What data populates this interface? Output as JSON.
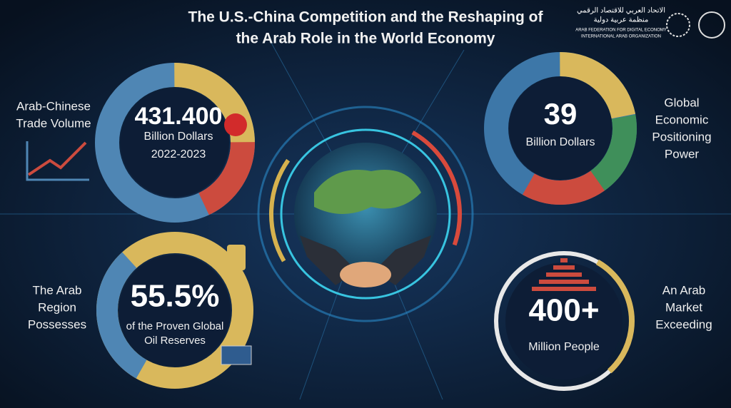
{
  "header": {
    "title_lines": [
      "The U.S.-China Competition and the Reshaping of",
      "the Arab Role in the World Economy"
    ],
    "logo": {
      "arabic_name": "الاتحاد العربي للاقتصاد الرقمي",
      "arabic_subtitle": "منظمة عربية دولية",
      "english_name": "ARAB FEDERATION FOR DIGITAL ECONOMY",
      "english_subtitle": "INTERNATIONAL ARAB ORGANIZATION"
    }
  },
  "panels": [
    {
      "label": [
        "Arab-Chinese",
        "Trade Volume"
      ],
      "value": "431.400",
      "unit": [
        "Billion Dollars"
      ],
      "period": "2022-2023"
    },
    {
      "label": [
        "Global",
        "Economic",
        "Positioning",
        "Power"
      ],
      "value": "39",
      "unit": [
        "Billion Dollars"
      ]
    },
    {
      "label": [
        "The Arab",
        "Region",
        "Possesses"
      ],
      "value": "55.5%",
      "unit": [
        "of the Proven Global",
        "Oil Reserves"
      ]
    },
    {
      "label": [
        "An Arab",
        "Market",
        "Exceeding"
      ],
      "value": "400+",
      "unit": [
        "Million People"
      ]
    }
  ]
}
